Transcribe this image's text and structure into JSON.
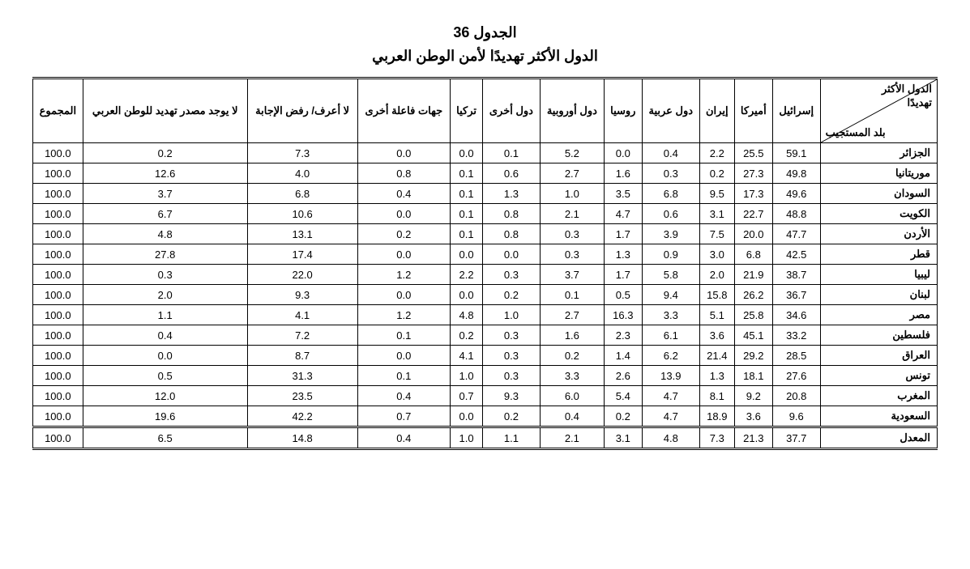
{
  "title": {
    "number": "الجدول  36",
    "text": "الدول الأكثر تهديدًا لأمن الوطن العربي"
  },
  "corner": {
    "top": "الدول الأكثر\nتهديدًا",
    "bottom": "بلد المستجيب"
  },
  "columns": [
    "إسرائيل",
    "أميركا",
    "إيران",
    "دول عربية",
    "روسيا",
    "دول أوروبية",
    "دول أخرى",
    "تركيا",
    "جهات فاعلة أخرى",
    "لا أعرف/ رفض الإجابة",
    "لا يوجد مصدر تهديد للوطن العربي",
    "المجموع"
  ],
  "rows": [
    {
      "label": "الجزائر",
      "values": [
        "59.1",
        "25.5",
        "2.2",
        "0.4",
        "0.0",
        "5.2",
        "0.1",
        "0.0",
        "0.0",
        "7.3",
        "0.2",
        "100.0"
      ]
    },
    {
      "label": "موريتانيا",
      "values": [
        "49.8",
        "27.3",
        "0.2",
        "0.3",
        "1.6",
        "2.7",
        "0.6",
        "0.1",
        "0.8",
        "4.0",
        "12.6",
        "100.0"
      ]
    },
    {
      "label": "السودان",
      "values": [
        "49.6",
        "17.3",
        "9.5",
        "6.8",
        "3.5",
        "1.0",
        "1.3",
        "0.1",
        "0.4",
        "6.8",
        "3.7",
        "100.0"
      ]
    },
    {
      "label": "الكويت",
      "values": [
        "48.8",
        "22.7",
        "3.1",
        "0.6",
        "4.7",
        "2.1",
        "0.8",
        "0.1",
        "0.0",
        "10.6",
        "6.7",
        "100.0"
      ]
    },
    {
      "label": "الأردن",
      "values": [
        "47.7",
        "20.0",
        "7.5",
        "3.9",
        "1.7",
        "0.3",
        "0.8",
        "0.1",
        "0.2",
        "13.1",
        "4.8",
        "100.0"
      ]
    },
    {
      "label": "قطر",
      "values": [
        "42.5",
        "6.8",
        "3.0",
        "0.9",
        "1.3",
        "0.3",
        "0.0",
        "0.0",
        "0.0",
        "17.4",
        "27.8",
        "100.0"
      ]
    },
    {
      "label": "ليبيا",
      "values": [
        "38.7",
        "21.9",
        "2.0",
        "5.8",
        "1.7",
        "3.7",
        "0.3",
        "2.2",
        "1.2",
        "22.0",
        "0.3",
        "100.0"
      ]
    },
    {
      "label": "لبنان",
      "values": [
        "36.7",
        "26.2",
        "15.8",
        "9.4",
        "0.5",
        "0.1",
        "0.2",
        "0.0",
        "0.0",
        "9.3",
        "2.0",
        "100.0"
      ]
    },
    {
      "label": "مصر",
      "values": [
        "34.6",
        "25.8",
        "5.1",
        "3.3",
        "16.3",
        "2.7",
        "1.0",
        "4.8",
        "1.2",
        "4.1",
        "1.1",
        "100.0"
      ]
    },
    {
      "label": "فلسطين",
      "values": [
        "33.2",
        "45.1",
        "3.6",
        "6.1",
        "2.3",
        "1.6",
        "0.3",
        "0.2",
        "0.1",
        "7.2",
        "0.4",
        "100.0"
      ]
    },
    {
      "label": "العراق",
      "values": [
        "28.5",
        "29.2",
        "21.4",
        "6.2",
        "1.4",
        "0.2",
        "0.3",
        "4.1",
        "0.0",
        "8.7",
        "0.0",
        "100.0"
      ]
    },
    {
      "label": "تونس",
      "values": [
        "27.6",
        "18.1",
        "1.3",
        "13.9",
        "2.6",
        "3.3",
        "0.3",
        "1.0",
        "0.1",
        "31.3",
        "0.5",
        "100.0"
      ]
    },
    {
      "label": "المغرب",
      "values": [
        "20.8",
        "9.2",
        "8.1",
        "4.7",
        "5.4",
        "6.0",
        "9.3",
        "0.7",
        "0.4",
        "23.5",
        "12.0",
        "100.0"
      ]
    },
    {
      "label": "السعودية",
      "values": [
        "9.6",
        "3.6",
        "18.9",
        "4.7",
        "0.2",
        "0.4",
        "0.2",
        "0.0",
        "0.7",
        "42.2",
        "19.6",
        "100.0"
      ]
    }
  ],
  "average": {
    "label": "المعدل",
    "values": [
      "37.7",
      "21.3",
      "7.3",
      "4.8",
      "3.1",
      "2.1",
      "1.1",
      "1.0",
      "0.4",
      "14.8",
      "6.5",
      "100.0"
    ]
  },
  "style": {
    "background_color": "#ffffff",
    "border_color": "#000000",
    "header_fontsize": 13,
    "body_fontsize": 13,
    "title_fontsize": 18,
    "font_family": "Arial"
  }
}
